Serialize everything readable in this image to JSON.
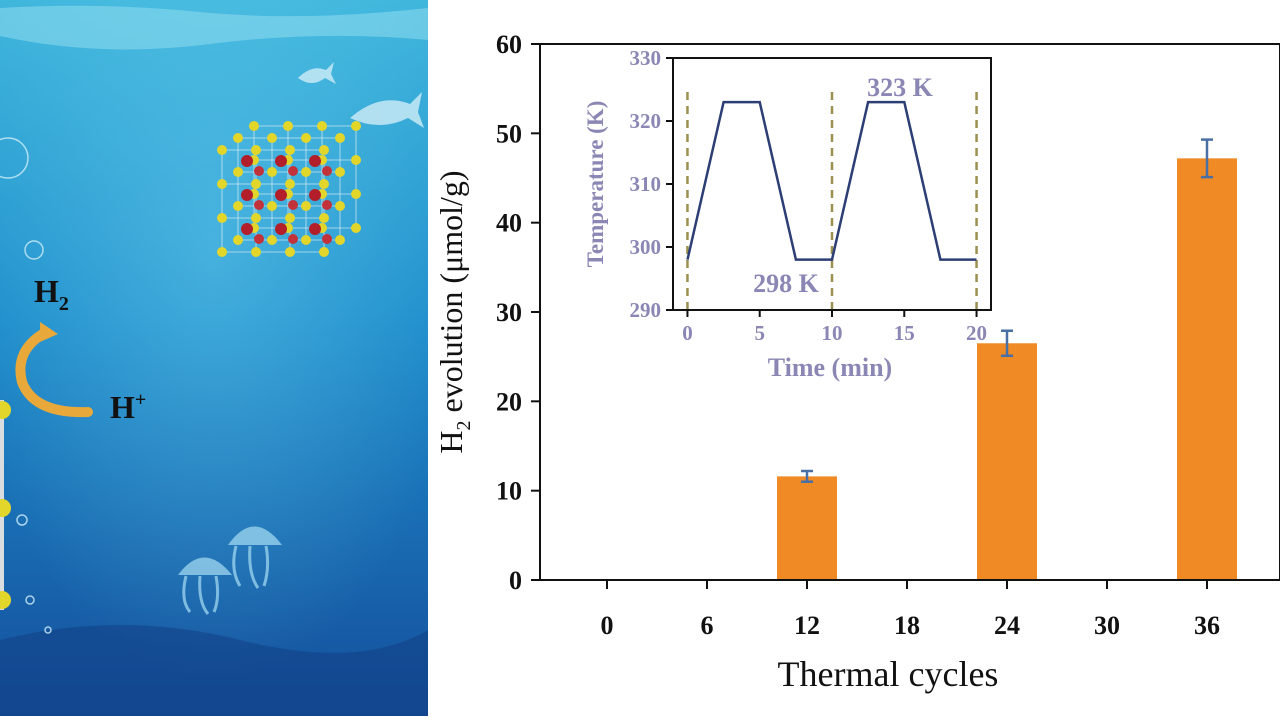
{
  "illustration": {
    "label_h2": "H",
    "label_h2_sub": "2",
    "label_hplus": "H",
    "label_hplus_sup": "+"
  },
  "chart_data": [
    {
      "type": "bar",
      "categories": [
        "0",
        "6",
        "12",
        "18",
        "24",
        "30",
        "36"
      ],
      "values": [
        0,
        0,
        11.6,
        0,
        26.5,
        0,
        47.2
      ],
      "errors": [
        0,
        0,
        0.6,
        0,
        1.4,
        0,
        2.1
      ],
      "xlabel": "Thermal cycles",
      "ylabel_pre": "H",
      "ylabel_sub": "2",
      "ylabel_post": " evolution (μmol/g)",
      "ylim": [
        0,
        60
      ],
      "yticks": [
        "0",
        "10",
        "20",
        "30",
        "40",
        "50",
        "60"
      ],
      "bar_color": "#f08a24",
      "error_color": "#4a6fa5"
    },
    {
      "type": "line",
      "x": [
        0,
        2.5,
        5,
        7.5,
        10,
        12.5,
        15,
        17.5,
        20
      ],
      "y": [
        298,
        323,
        323,
        298,
        298,
        323,
        323,
        298,
        298
      ],
      "xlabel": "Time (min)",
      "ylabel": "Temperature (K)",
      "xlim": [
        -1,
        21
      ],
      "ylim": [
        290,
        330
      ],
      "xticks": [
        "0",
        "5",
        "10",
        "15",
        "20"
      ],
      "yticks": [
        "290",
        "300",
        "310",
        "320",
        "330"
      ],
      "annotations": [
        "323 K",
        "298 K"
      ],
      "cycle_marks": [
        0,
        10,
        20
      ],
      "line_color": "#2c3e74",
      "text_color": "#8b87b5",
      "mark_color": "#9c9050"
    }
  ]
}
